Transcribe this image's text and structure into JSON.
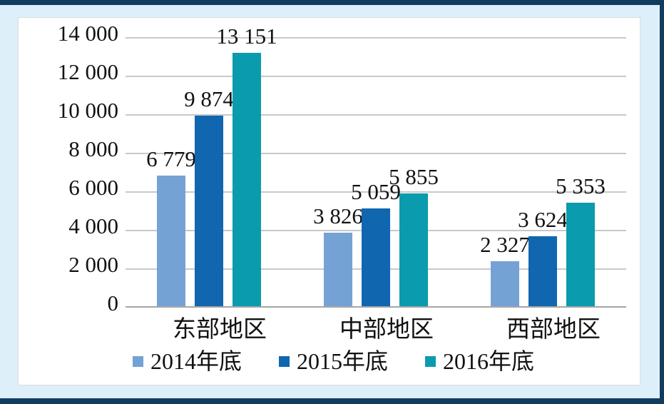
{
  "frame": {
    "background_color": "#ddeff9",
    "border_color": "#113c5e",
    "panel_color": "#ffffff"
  },
  "chart_data": {
    "type": "bar",
    "title": "",
    "categories": [
      "东部地区",
      "中部地区",
      "西部地区"
    ],
    "series": [
      {
        "name": "2014年底",
        "color": "#74a2d5",
        "values": [
          6779,
          3826,
          2327
        ]
      },
      {
        "name": "2015年底",
        "color": "#1166b0",
        "values": [
          9874,
          5059,
          3624
        ]
      },
      {
        "name": "2016年底",
        "color": "#0a9bae",
        "values": [
          13151,
          5855,
          5353
        ]
      }
    ],
    "data_labels": [
      [
        "6 779",
        "3 826",
        "2 327"
      ],
      [
        "9 874",
        "5 059",
        "3 624"
      ],
      [
        "13 151",
        "5 855",
        "5 353"
      ]
    ],
    "ylim": [
      0,
      14000
    ],
    "ytick_step": 2000,
    "yticks": [
      0,
      2000,
      4000,
      6000,
      8000,
      10000,
      12000,
      14000
    ],
    "ytick_labels": [
      "0",
      "2 000",
      "4 000",
      "6 000",
      "8 000",
      "10 000",
      "12 000",
      "14 000"
    ],
    "grid": true,
    "gridline_color": "#c9c9c9",
    "axis_color": "#a6a6a6",
    "legend_position": "bottom",
    "xlabel": "",
    "ylabel": ""
  }
}
